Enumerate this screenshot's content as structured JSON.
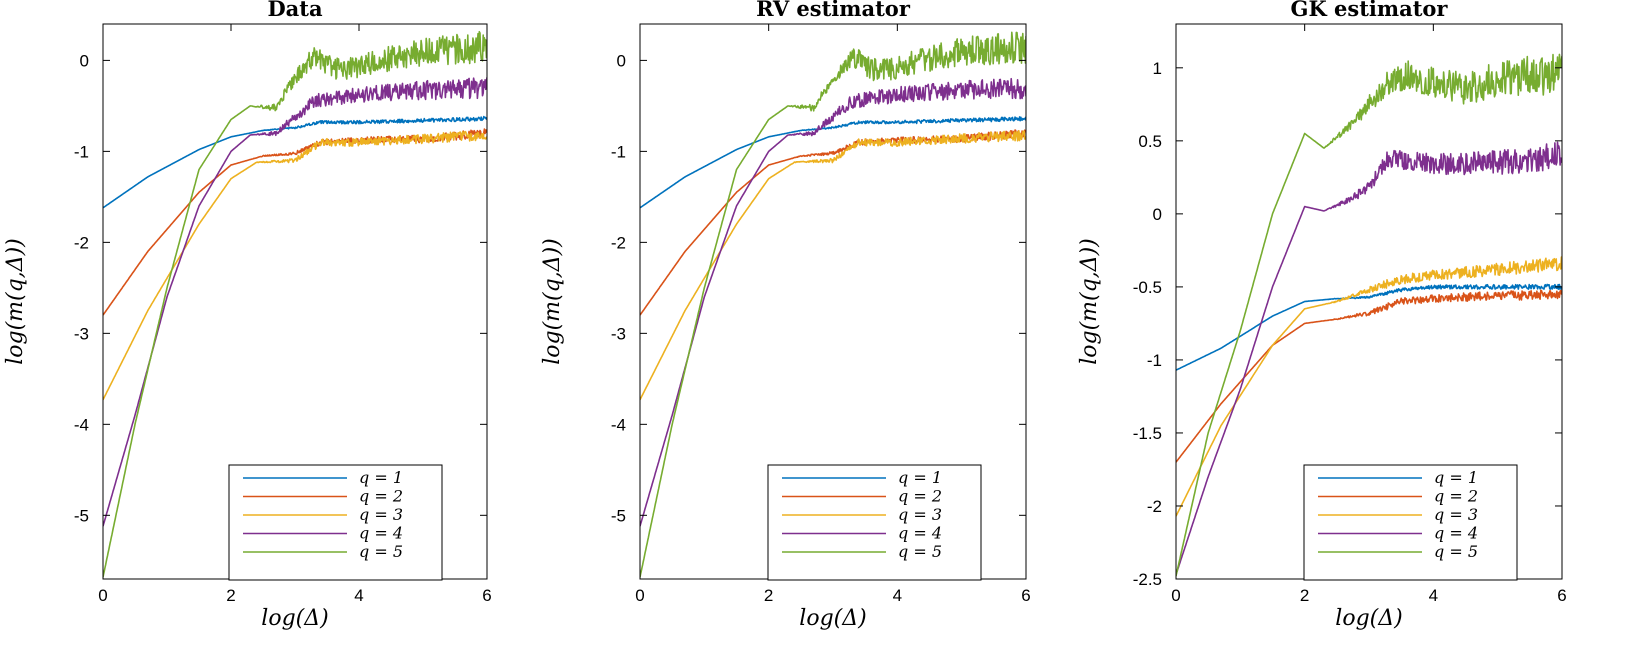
{
  "figure": {
    "layout": "three side-by-side line charts"
  },
  "colors": {
    "q1": "#0072BD",
    "q2": "#D95319",
    "q3": "#EDB120",
    "q4": "#7E2F8E",
    "q5": "#77AC30"
  },
  "chart_data": [
    {
      "type": "line",
      "title": "Data",
      "xlabel": "log(Δ)",
      "ylabel": "log(m(q,Δ))",
      "xlim": [
        0,
        6
      ],
      "ylim": [
        -5.7,
        0.4
      ],
      "xticks": [
        0,
        2,
        4,
        6
      ],
      "yticks": [
        -5,
        -4,
        -3,
        -2,
        -1,
        0
      ],
      "grid": false,
      "legend_position": "bottom-right",
      "series": [
        {
          "name": "q = 1",
          "color_key": "q1",
          "noise": 0.02,
          "x": [
            0,
            0.7,
            1.5,
            2.0,
            2.5,
            3.0,
            3.4,
            4.0,
            5.0,
            6.0
          ],
          "y": [
            -1.62,
            -1.28,
            -0.98,
            -0.84,
            -0.77,
            -0.74,
            -0.68,
            -0.68,
            -0.66,
            -0.64
          ]
        },
        {
          "name": "q = 2",
          "color_key": "q2",
          "noise": 0.04,
          "x": [
            0,
            0.7,
            1.5,
            2.0,
            2.5,
            3.0,
            3.4,
            4.0,
            5.0,
            6.0
          ],
          "y": [
            -2.8,
            -2.1,
            -1.45,
            -1.15,
            -1.05,
            -1.02,
            -0.9,
            -0.88,
            -0.86,
            -0.8
          ]
        },
        {
          "name": "q = 3",
          "color_key": "q3",
          "noise": 0.05,
          "x": [
            0,
            0.7,
            1.5,
            2.0,
            2.4,
            3.0,
            3.4,
            4.0,
            5.0,
            6.0
          ],
          "y": [
            -3.73,
            -2.75,
            -1.8,
            -1.3,
            -1.12,
            -1.1,
            -0.9,
            -0.9,
            -0.86,
            -0.82
          ]
        },
        {
          "name": "q = 4",
          "color_key": "q4",
          "noise": 0.1,
          "x": [
            0,
            0.5,
            1.0,
            1.5,
            2.0,
            2.3,
            2.7,
            3.0,
            3.3,
            4.0,
            5.0,
            6.0
          ],
          "y": [
            -5.12,
            -3.9,
            -2.6,
            -1.6,
            -1.0,
            -0.82,
            -0.8,
            -0.62,
            -0.45,
            -0.38,
            -0.33,
            -0.3
          ]
        },
        {
          "name": "q = 5",
          "color_key": "q5",
          "noise": 0.15,
          "x": [
            0,
            0.5,
            1.0,
            1.5,
            2.0,
            2.3,
            2.7,
            3.0,
            3.3,
            3.6,
            4.0,
            4.5,
            5.0,
            5.5,
            6.0
          ],
          "y": [
            -5.68,
            -4.0,
            -2.5,
            -1.2,
            -0.65,
            -0.5,
            -0.52,
            -0.2,
            0.05,
            -0.1,
            -0.08,
            0.02,
            0.1,
            0.12,
            0.15
          ]
        }
      ]
    },
    {
      "type": "line",
      "title": "RV estimator",
      "xlabel": "log(Δ)",
      "ylabel": "log(m(q,Δ))",
      "xlim": [
        0,
        6
      ],
      "ylim": [
        -5.7,
        0.4
      ],
      "xticks": [
        0,
        2,
        4,
        6
      ],
      "yticks": [
        -5,
        -4,
        -3,
        -2,
        -1,
        0
      ],
      "grid": false,
      "legend_position": "bottom-right",
      "series": [
        {
          "name": "q = 1",
          "color_key": "q1",
          "noise": 0.02,
          "x": [
            0,
            0.7,
            1.5,
            2.0,
            2.5,
            3.0,
            3.4,
            4.0,
            5.0,
            6.0
          ],
          "y": [
            -1.62,
            -1.28,
            -0.98,
            -0.84,
            -0.77,
            -0.74,
            -0.68,
            -0.68,
            -0.66,
            -0.64
          ]
        },
        {
          "name": "q = 2",
          "color_key": "q2",
          "noise": 0.04,
          "x": [
            0,
            0.7,
            1.5,
            2.0,
            2.5,
            3.0,
            3.4,
            4.0,
            5.0,
            6.0
          ],
          "y": [
            -2.8,
            -2.1,
            -1.45,
            -1.15,
            -1.05,
            -1.02,
            -0.9,
            -0.88,
            -0.86,
            -0.8
          ]
        },
        {
          "name": "q = 3",
          "color_key": "q3",
          "noise": 0.05,
          "x": [
            0,
            0.7,
            1.5,
            2.0,
            2.4,
            3.0,
            3.4,
            4.0,
            5.0,
            6.0
          ],
          "y": [
            -3.73,
            -2.75,
            -1.8,
            -1.3,
            -1.12,
            -1.1,
            -0.9,
            -0.9,
            -0.86,
            -0.82
          ]
        },
        {
          "name": "q = 4",
          "color_key": "q4",
          "noise": 0.1,
          "x": [
            0,
            0.5,
            1.0,
            1.5,
            2.0,
            2.3,
            2.7,
            3.0,
            3.3,
            4.0,
            5.0,
            6.0
          ],
          "y": [
            -5.12,
            -3.9,
            -2.6,
            -1.6,
            -1.0,
            -0.82,
            -0.8,
            -0.62,
            -0.45,
            -0.38,
            -0.33,
            -0.3
          ]
        },
        {
          "name": "q = 5",
          "color_key": "q5",
          "noise": 0.15,
          "x": [
            0,
            0.5,
            1.0,
            1.5,
            2.0,
            2.3,
            2.7,
            3.0,
            3.3,
            3.6,
            4.0,
            4.5,
            5.0,
            5.5,
            6.0
          ],
          "y": [
            -5.68,
            -4.0,
            -2.5,
            -1.2,
            -0.65,
            -0.5,
            -0.52,
            -0.2,
            0.05,
            -0.1,
            -0.08,
            0.02,
            0.1,
            0.12,
            0.15
          ]
        }
      ]
    },
    {
      "type": "line",
      "title": "GK estimator",
      "xlabel": "log(Δ)",
      "ylabel": "log(m(q,Δ))",
      "xlim": [
        0,
        6
      ],
      "ylim": [
        -2.5,
        1.3
      ],
      "xticks": [
        0,
        2,
        4,
        6
      ],
      "yticks": [
        -2.5,
        -2,
        -1.5,
        -1,
        -0.5,
        0,
        0.5,
        1
      ],
      "grid": false,
      "legend_position": "bottom-right",
      "series": [
        {
          "name": "q = 1",
          "color_key": "q1",
          "noise": 0.015,
          "x": [
            0,
            0.7,
            1.5,
            2.0,
            2.5,
            3.0,
            3.5,
            4.0,
            5.0,
            6.0
          ],
          "y": [
            -1.07,
            -0.92,
            -0.7,
            -0.6,
            -0.58,
            -0.57,
            -0.52,
            -0.5,
            -0.5,
            -0.5
          ]
        },
        {
          "name": "q = 2",
          "color_key": "q2",
          "noise": 0.03,
          "x": [
            0,
            0.7,
            1.5,
            2.0,
            2.5,
            3.0,
            3.5,
            4.0,
            5.0,
            6.0
          ],
          "y": [
            -1.7,
            -1.3,
            -0.9,
            -0.75,
            -0.72,
            -0.68,
            -0.6,
            -0.58,
            -0.56,
            -0.55
          ]
        },
        {
          "name": "q = 3",
          "color_key": "q3",
          "noise": 0.04,
          "x": [
            0,
            0.7,
            1.5,
            2.0,
            2.5,
            3.0,
            3.5,
            4.0,
            5.0,
            6.0
          ],
          "y": [
            -2.07,
            -1.45,
            -0.9,
            -0.65,
            -0.6,
            -0.52,
            -0.45,
            -0.42,
            -0.38,
            -0.34
          ]
        },
        {
          "name": "q = 4",
          "color_key": "q4",
          "noise": 0.08,
          "x": [
            0,
            0.5,
            1.0,
            1.5,
            2.0,
            2.3,
            2.7,
            3.0,
            3.3,
            4.0,
            5.0,
            6.0
          ],
          "y": [
            -2.47,
            -1.8,
            -1.2,
            -0.5,
            0.05,
            0.02,
            0.1,
            0.18,
            0.38,
            0.34,
            0.35,
            0.4
          ]
        },
        {
          "name": "q = 5",
          "color_key": "q5",
          "noise": 0.12,
          "x": [
            0,
            0.5,
            1.0,
            1.5,
            2.0,
            2.3,
            2.7,
            3.0,
            3.3,
            3.6,
            4.0,
            4.5,
            5.0,
            5.5,
            6.0
          ],
          "y": [
            -2.48,
            -1.5,
            -0.8,
            0.0,
            0.55,
            0.45,
            0.6,
            0.75,
            0.9,
            0.95,
            0.9,
            0.85,
            0.92,
            0.95,
            0.95
          ]
        }
      ]
    }
  ]
}
